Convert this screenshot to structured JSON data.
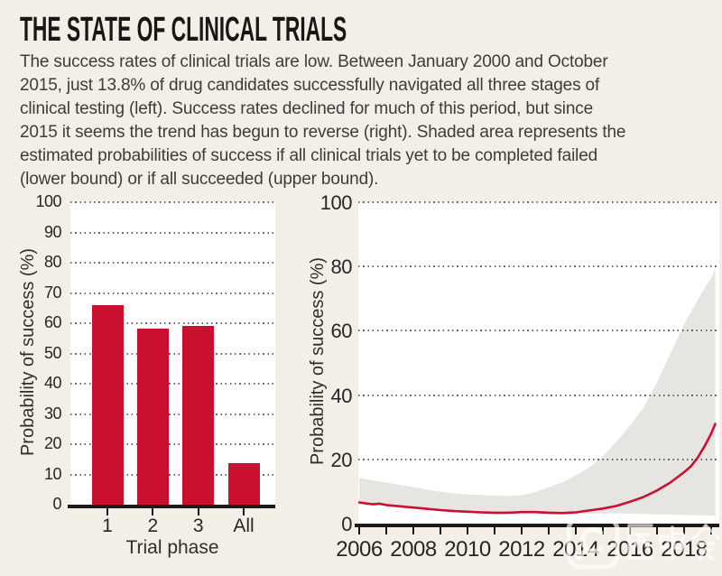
{
  "header": {
    "title": "THE STATE OF CLINICAL TRIALS",
    "description_lines": [
      "The success rates of clinical trials are low. Between January 2000 and October",
      "2015, just 13.8% of drug candidates successfully navigated all three stages of",
      "clinical testing (left). Success rates declined for much of this period, but since",
      "2015 it seems the trend has begun to reverse (right). Shaded area represents the",
      "estimated probabilities of success if all clinical trials yet to be completed failed",
      "(lower bound) or if all succeeded (upper bound)."
    ]
  },
  "colors": {
    "page_bg": "#f3efe6",
    "plot_bg": "#ffffff",
    "red": "#c9102f",
    "band_gray": "#e6e5e2",
    "grid": "#4f4f4f",
    "axis": "#1a1a1a",
    "text": "#3c3c3a"
  },
  "watermark": {
    "logo": "speech-bubble-app-logo",
    "text": "医咖会"
  },
  "chart_data": [
    {
      "type": "bar",
      "title": "",
      "xlabel": "Trial phase",
      "ylabel": "Probability of success (%)",
      "categories": [
        "1",
        "2",
        "3",
        "All"
      ],
      "values": [
        66,
        58.3,
        59.1,
        13.8
      ],
      "ylim": [
        0,
        100
      ],
      "ytick_step": 10,
      "grid": "horizontal-dotted",
      "bar_color": "#c9102f"
    },
    {
      "type": "area",
      "title": "",
      "xlabel": "",
      "ylabel": "Probability of success (%)",
      "xlim": [
        2006,
        2019.3
      ],
      "ylim": [
        0,
        100
      ],
      "yticks": [
        0,
        20,
        40,
        60,
        80,
        100
      ],
      "x_ticks_labeled": [
        2006,
        2008,
        2010,
        2012,
        2014,
        2016,
        2018
      ],
      "x_minor_tick_step": 1,
      "grid": "horizontal-dotted",
      "legend": "none",
      "series": [
        {
          "name": "estimated probability of success",
          "type": "line",
          "color": "#c9102f",
          "x": [
            2006,
            2006.25,
            2006.5,
            2006.75,
            2007,
            2007.5,
            2008,
            2008.5,
            2009,
            2009.5,
            2010,
            2010.5,
            2011,
            2011.5,
            2012,
            2012.5,
            2013,
            2013.5,
            2014,
            2014.5,
            2015,
            2015.5,
            2016,
            2016.5,
            2017,
            2017.5,
            2018,
            2018.25,
            2018.5,
            2018.75,
            2019,
            2019.15
          ],
          "y": [
            6.6,
            6.3,
            6.0,
            6.2,
            5.8,
            5.4,
            5.0,
            4.6,
            4.2,
            3.9,
            3.7,
            3.5,
            3.4,
            3.4,
            3.6,
            3.6,
            3.4,
            3.3,
            3.5,
            4.1,
            4.7,
            5.5,
            6.8,
            8.3,
            10.3,
            12.8,
            16.0,
            17.8,
            20.5,
            24.0,
            28.0,
            31.0
          ]
        },
        {
          "name": "bounds if remaining trials all fail (lower) or all succeed (upper)",
          "type": "band",
          "color": "#e6e5e2",
          "x": [
            2006,
            2006.5,
            2007,
            2007.5,
            2008,
            2008.5,
            2009,
            2009.5,
            2010,
            2010.5,
            2011,
            2011.5,
            2012,
            2012.5,
            2013,
            2013.5,
            2014,
            2014.5,
            2015,
            2015.5,
            2016,
            2016.5,
            2017,
            2017.5,
            2018,
            2018.4,
            2018.7,
            2019,
            2019.15
          ],
          "upper": [
            14.2,
            13.4,
            12.8,
            12.0,
            11.4,
            10.6,
            9.9,
            9.4,
            9.1,
            8.9,
            8.7,
            8.6,
            8.8,
            9.8,
            11.3,
            12.8,
            15.0,
            17.5,
            21.0,
            25.5,
            30.5,
            36.0,
            44.0,
            53.0,
            62.0,
            68.0,
            72.5,
            76.5,
            79.5
          ],
          "lower": [
            6.3,
            5.9,
            5.5,
            5.1,
            4.7,
            4.3,
            3.9,
            3.6,
            3.4,
            3.2,
            3.1,
            3.1,
            3.2,
            3.2,
            3.0,
            2.9,
            3.0,
            3.1,
            3.2,
            3.2,
            3.1,
            3.0,
            2.9,
            2.8,
            2.7,
            2.6,
            2.6,
            2.5,
            2.5
          ]
        }
      ]
    }
  ]
}
